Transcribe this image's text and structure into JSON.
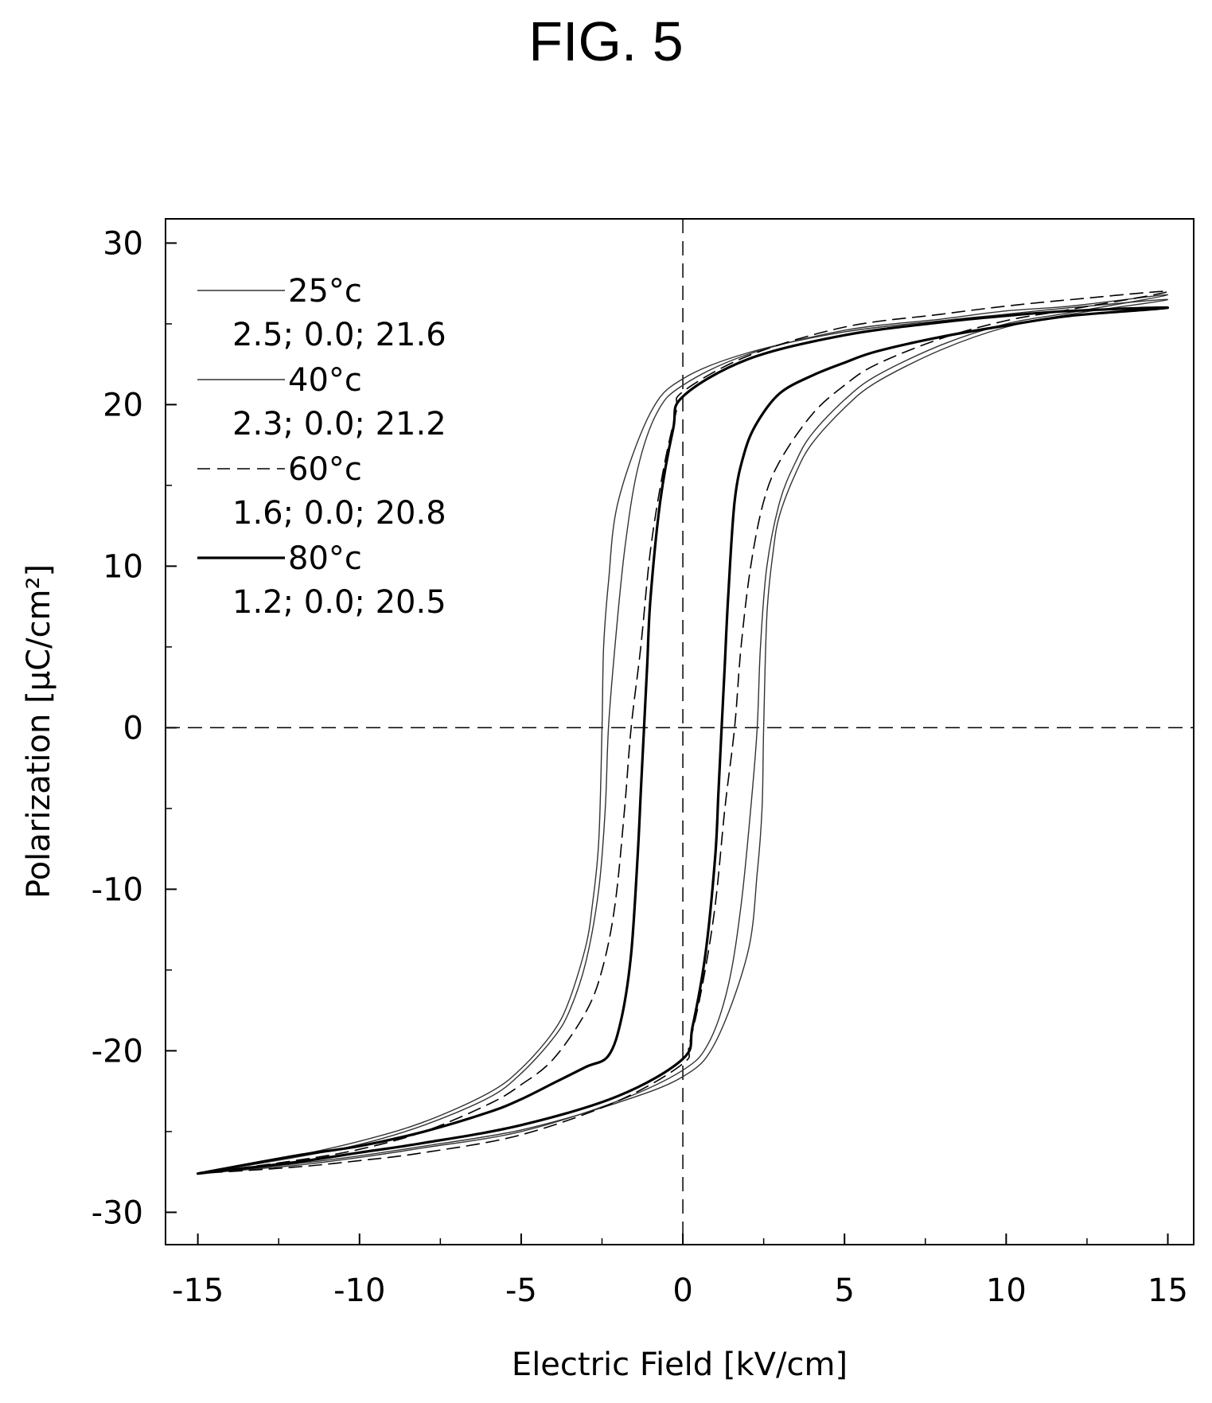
{
  "figure": {
    "title": "FIG. 5"
  },
  "chart_data": {
    "type": "line",
    "title": "",
    "xlabel": "Electric Field [kV/cm]",
    "ylabel": "Polarization [μC/cm²]",
    "xlim": [
      -16,
      15.8
    ],
    "ylim": [
      -32,
      31.5
    ],
    "xticks": [
      -15,
      -10,
      -5,
      0,
      5,
      10,
      15
    ],
    "yticks": [
      -30,
      -20,
      -10,
      0,
      10,
      20,
      30
    ],
    "grid": false,
    "zero_lines": "dashed",
    "legend_position": "top-left",
    "series": [
      {
        "name": "25°c",
        "stats": "2.5; 0.0; 21.6",
        "style": "thin",
        "x": [
          -15,
          -12,
          -10,
          -8,
          -6,
          -5,
          -4,
          -3.5,
          -3,
          -2.8,
          -2.6,
          -2.5,
          -2.45,
          -2.3,
          -2,
          -1,
          0,
          2,
          5,
          8,
          10,
          12,
          15,
          12,
          10,
          8,
          6,
          5,
          4,
          3.5,
          3,
          2.8,
          2.6,
          2.5,
          2.45,
          2.3,
          2,
          1,
          0,
          -2,
          -5,
          -8,
          -10,
          -12,
          -15
        ],
        "y": [
          -27.6,
          -26.5,
          -25.6,
          -24.4,
          -22.6,
          -21.1,
          -18.8,
          -16.8,
          -13.5,
          -11,
          -7,
          0,
          5,
          9,
          14,
          19.5,
          21.6,
          23.2,
          24.5,
          25.2,
          25.6,
          26,
          26.5,
          25.6,
          24.8,
          23.4,
          21.4,
          19.8,
          17.6,
          15.8,
          13.2,
          11,
          7,
          0,
          -5,
          -9,
          -14,
          -19.5,
          -21.6,
          -23.2,
          -24.9,
          -25.9,
          -26.5,
          -27,
          -27.6
        ]
      },
      {
        "name": "40°c",
        "stats": "2.3; 0.0; 21.2",
        "style": "thin",
        "x": [
          -15,
          -12,
          -10,
          -8,
          -6,
          -5,
          -4,
          -3.5,
          -3,
          -2.6,
          -2.4,
          -2.3,
          -2.1,
          -1.8,
          -1.4,
          -0.8,
          0,
          2,
          5,
          8,
          10,
          12,
          15,
          12,
          10,
          8,
          6,
          5,
          4,
          3.5,
          3,
          2.6,
          2.4,
          2.3,
          2.1,
          1.8,
          1.4,
          0.8,
          0,
          -2,
          -5,
          -8,
          -10,
          -12,
          -15
        ],
        "y": [
          -27.6,
          -26.6,
          -25.8,
          -24.6,
          -22.9,
          -21.4,
          -19.2,
          -17.5,
          -14.5,
          -10,
          -5,
          0,
          5,
          11,
          16,
          19.5,
          21.2,
          23.1,
          24.6,
          25.3,
          25.8,
          26.1,
          26.8,
          25.7,
          25,
          23.7,
          21.8,
          20.3,
          18.2,
          16.5,
          14,
          10,
          5,
          0,
          -5,
          -11,
          -16,
          -19.5,
          -21.2,
          -23.1,
          -25,
          -26,
          -26.6,
          -27.1,
          -27.6
        ]
      },
      {
        "name": "60°c",
        "stats": "1.6; 0.0; 20.8",
        "style": "dashed",
        "x": [
          -15,
          -12,
          -10,
          -8,
          -6,
          -5,
          -4,
          -3,
          -2.5,
          -2.1,
          -1.8,
          -1.6,
          -1.3,
          -1,
          -0.6,
          -0.2,
          0,
          2,
          5,
          8,
          10,
          12,
          15,
          12,
          10,
          8,
          6,
          5,
          4,
          3,
          2.5,
          2.1,
          1.8,
          1.6,
          1.3,
          1,
          0.6,
          0.2,
          0,
          -2,
          -5,
          -8,
          -10,
          -12,
          -15
        ],
        "y": [
          -27.6,
          -26.8,
          -26.1,
          -25,
          -23.3,
          -22.1,
          -20.5,
          -17.6,
          -15,
          -11,
          -5,
          0,
          5,
          11,
          16,
          19.6,
          20.8,
          23,
          24.8,
          25.6,
          26.1,
          26.5,
          27,
          25.9,
          25.2,
          24.1,
          22.5,
          21.2,
          19.4,
          16.5,
          14,
          10,
          5,
          0,
          -5,
          -11,
          -16,
          -19.6,
          -20.8,
          -23.1,
          -25.2,
          -26.3,
          -26.8,
          -27.2,
          -27.6
        ]
      },
      {
        "name": "80°c",
        "stats": "1.2; 0.0; 20.5",
        "style": "bold",
        "x": [
          -15,
          -12,
          -10,
          -8,
          -6,
          -5,
          -4,
          -3,
          -2.3,
          -1.9,
          -1.6,
          -1.4,
          -1.3,
          -1.2,
          -1.1,
          -1,
          -0.7,
          -0.3,
          0,
          2,
          5,
          8,
          10,
          12,
          15,
          12,
          10,
          8,
          6,
          5,
          4,
          3,
          2.3,
          1.9,
          1.6,
          1.4,
          1.3,
          1.2,
          1.1,
          1,
          0.7,
          0.3,
          0,
          -2,
          -5,
          -8,
          -10,
          -12,
          -15
        ],
        "y": [
          -27.6,
          -26.5,
          -25.9,
          -25,
          -23.8,
          -23,
          -22,
          -21,
          -20.3,
          -18,
          -14,
          -8,
          -4,
          0,
          4,
          8,
          14,
          18.5,
          20.5,
          22.8,
          24.3,
          25.1,
          25.5,
          25.8,
          26,
          25.5,
          24.9,
          24.2,
          23.3,
          22.6,
          21.8,
          20.7,
          18.9,
          17,
          14,
          8,
          4,
          0,
          -4,
          -8,
          -14,
          -18.5,
          -20.5,
          -22.8,
          -24.6,
          -25.7,
          -26.3,
          -26.9,
          -27.6
        ]
      }
    ]
  }
}
